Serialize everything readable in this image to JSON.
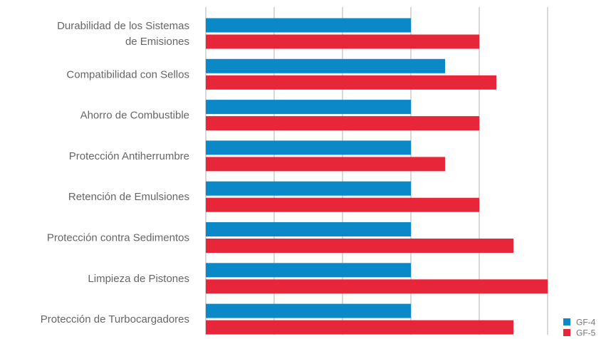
{
  "chart_data": {
    "type": "bar",
    "orientation": "horizontal",
    "categories": [
      [
        "Durabilidad de los Sistemas",
        "de Emisiones"
      ],
      [
        "Compatibilidad con Sellos"
      ],
      [
        "Ahorro de Combustible"
      ],
      [
        "Protección Antiherrumbre"
      ],
      [
        "Retención de Emulsiones"
      ],
      [
        "Protección contra Sedimentos"
      ],
      [
        "Limpieza de Pistones"
      ],
      [
        "Protección de Turbocargadores"
      ]
    ],
    "series": [
      {
        "name": "GF-4",
        "color": "#0a88c8",
        "values": [
          3,
          3.5,
          3,
          3,
          3,
          3,
          3,
          3
        ]
      },
      {
        "name": "GF-5",
        "color": "#e8263a",
        "values": [
          4,
          4.25,
          4,
          3.5,
          4,
          4.5,
          5,
          4.5
        ]
      }
    ],
    "xlim": [
      0,
      5
    ],
    "grid": true,
    "gridline_color": "#b0b0b0",
    "legend_position": "bottom-right",
    "title": "",
    "xlabel": "",
    "ylabel": ""
  }
}
